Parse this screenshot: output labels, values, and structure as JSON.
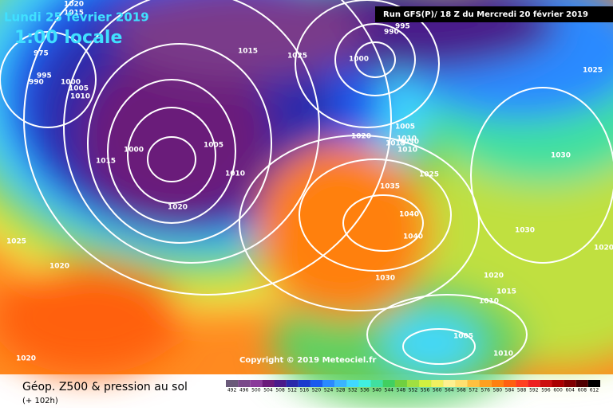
{
  "header": {
    "date": "Lundi 25 février 2019",
    "time": "1:00 locale",
    "run": "Run GFS(P)/ 18 Z du Mercredi 20 février 2019"
  },
  "copyright": "Copyright © 2019 Meteociel.fr",
  "footer": {
    "title": "Géop. Z500 & pression au sol",
    "subtitle": "(+ 102h)"
  },
  "isobar_labels": [
    "1020",
    "1015",
    "975",
    "990",
    "995",
    "1000",
    "1005",
    "1010",
    "1015",
    "1025",
    "995",
    "990",
    "1000",
    "1000",
    "1005",
    "1010",
    "1015",
    "1020",
    "1025",
    "1030",
    "1035",
    "1040",
    "1040",
    "1030",
    "1025",
    "1020",
    "1015",
    "1010",
    "1005",
    "1010",
    "1025",
    "1020",
    "1020",
    "1030",
    "1030",
    "1020",
    "1015",
    "1010",
    "1005",
    "1010",
    "1020"
  ],
  "legend": {
    "values": [
      492,
      496,
      500,
      504,
      508,
      512,
      516,
      520,
      524,
      528,
      532,
      536,
      540,
      544,
      548,
      552,
      556,
      560,
      564,
      568,
      572,
      576,
      580,
      584,
      588,
      592,
      596,
      600,
      604,
      608,
      612
    ],
    "colors": [
      "#6a5a7a",
      "#7a4a8a",
      "#8a3a9a",
      "#6a1a7a",
      "#4a1a8a",
      "#2a2aaa",
      "#1a3acc",
      "#1a5aee",
      "#2a8aff",
      "#3ab4ff",
      "#40d8ff",
      "#40f0e0",
      "#40e0a0",
      "#40d060",
      "#70d040",
      "#a0e040",
      "#d0f040",
      "#f0f060",
      "#fff090",
      "#ffe070",
      "#ffc040",
      "#ffa020",
      "#ff8010",
      "#ff6010",
      "#ff4020",
      "#ee2020",
      "#cc1010",
      "#aa0000",
      "#800000",
      "#500000",
      "#000000"
    ]
  }
}
